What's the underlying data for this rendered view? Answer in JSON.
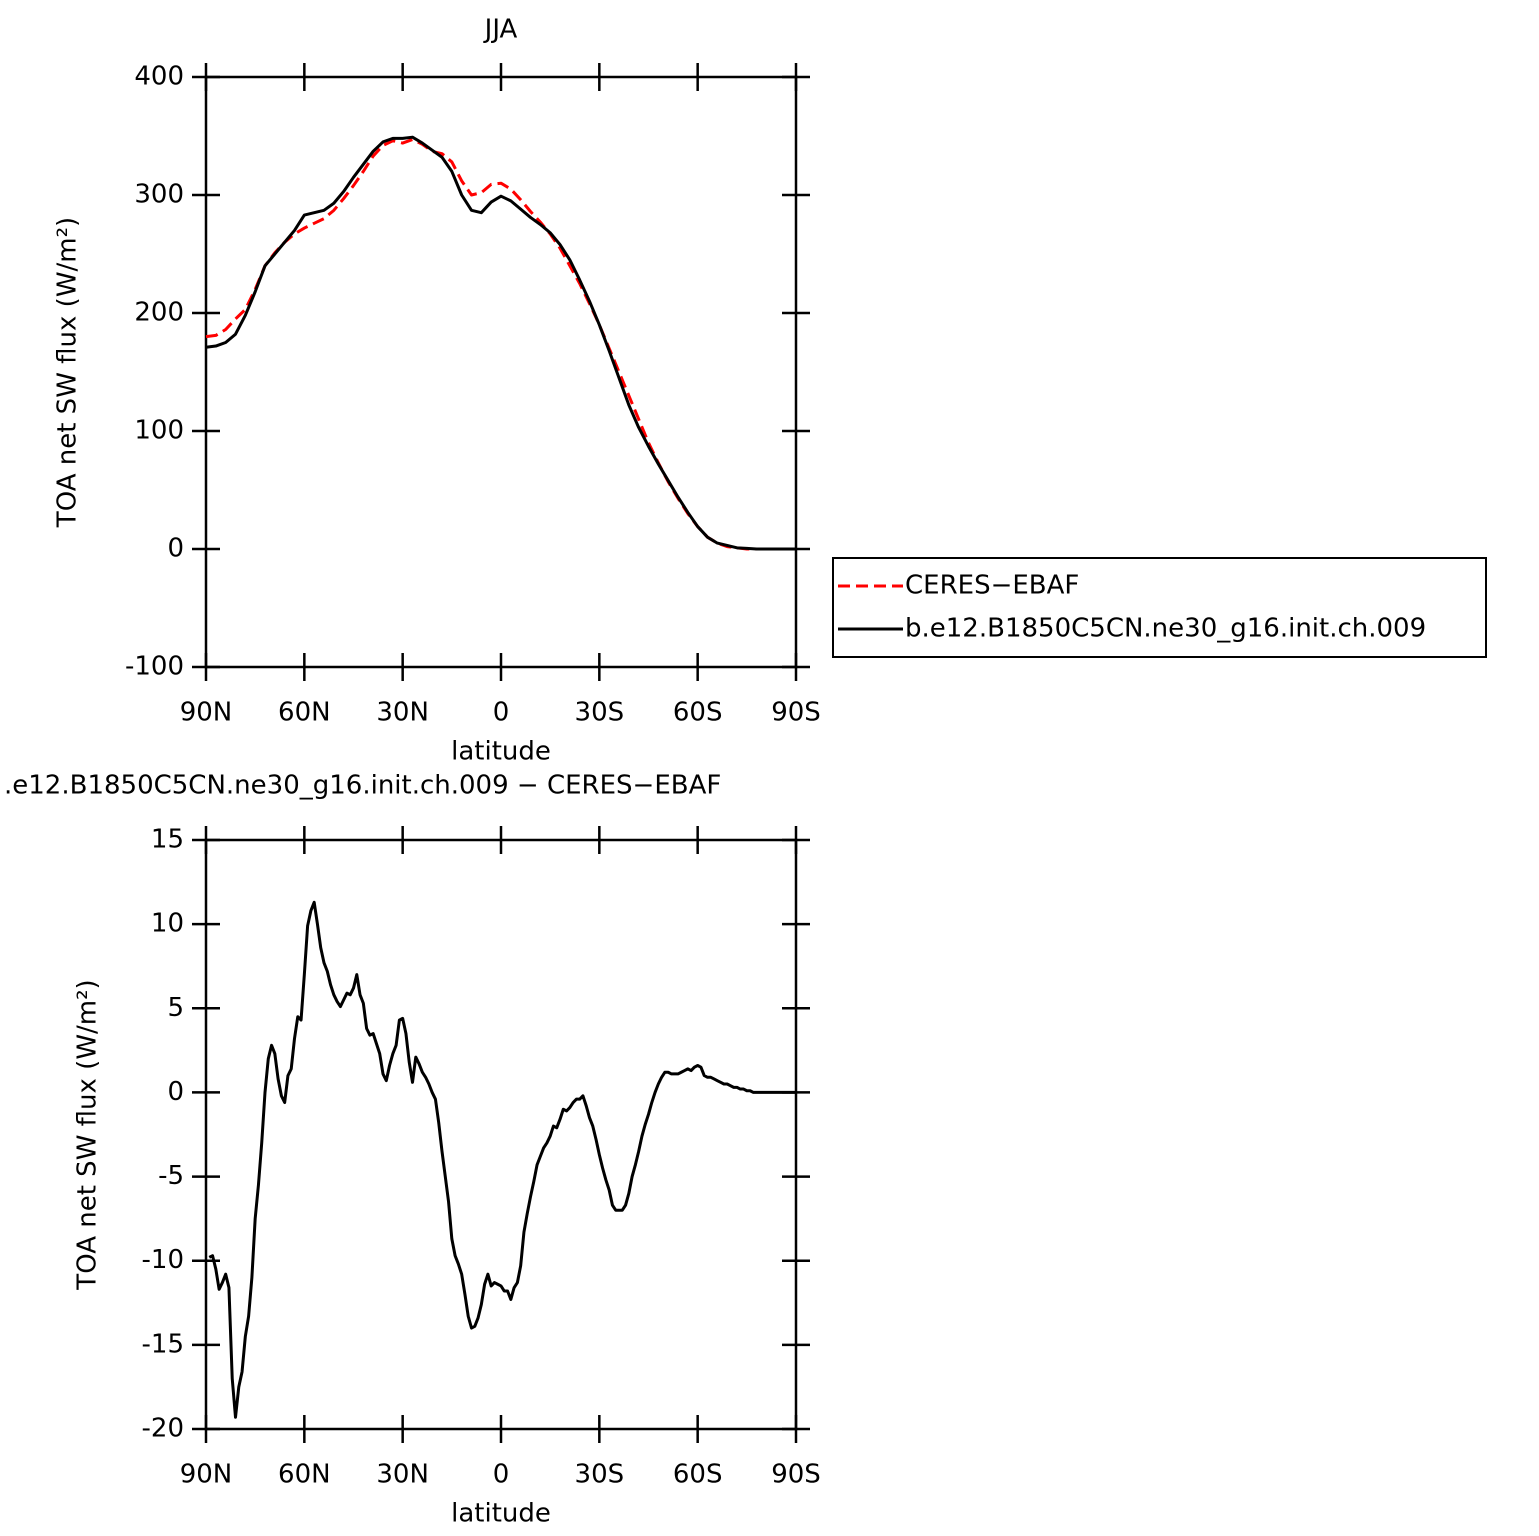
{
  "chart_data": [
    {
      "type": "line",
      "title": "JJA",
      "xlabel": "latitude",
      "ylabel": "TOA net SW flux (W/m²)",
      "xlim": [
        90,
        -90
      ],
      "ylim": [
        -100,
        400
      ],
      "yticks": [
        -100,
        0,
        100,
        200,
        300,
        400
      ],
      "xticks": [
        {
          "value": 90,
          "label": "90N"
        },
        {
          "value": 60,
          "label": "60N"
        },
        {
          "value": 30,
          "label": "30N"
        },
        {
          "value": 0,
          "label": "0"
        },
        {
          "value": -30,
          "label": "30S"
        },
        {
          "value": -60,
          "label": "60S"
        },
        {
          "value": -90,
          "label": "90S"
        }
      ],
      "legend": "right",
      "x": [
        90,
        87,
        84,
        81,
        78,
        75,
        72,
        69,
        66,
        63,
        60,
        57,
        54,
        51,
        48,
        45,
        42,
        39,
        36,
        33,
        30,
        27,
        24,
        21,
        18,
        15,
        12,
        9,
        6,
        3,
        0,
        -3,
        -6,
        -9,
        -12,
        -15,
        -18,
        -21,
        -24,
        -27,
        -30,
        -33,
        -36,
        -39,
        -42,
        -45,
        -48,
        -51,
        -54,
        -57,
        -60,
        -63,
        -66,
        -69,
        -72,
        -75,
        -78,
        -81,
        -84,
        -87,
        -90
      ],
      "series": [
        {
          "name": "CERES−EBAF",
          "color": "#ff0000",
          "dashed": true,
          "values": [
            180,
            181,
            186,
            195,
            203,
            220,
            240,
            251,
            260,
            267,
            272,
            276,
            280,
            287,
            297,
            308,
            320,
            333,
            342,
            346,
            344,
            347,
            343,
            337,
            335,
            328,
            312,
            300,
            302,
            309,
            310,
            305,
            296,
            286,
            277,
            267,
            255,
            240,
            225,
            208,
            190,
            170,
            150,
            130,
            110,
            90,
            73,
            57,
            43,
            30,
            19,
            10,
            5,
            2,
            1,
            0,
            0,
            0,
            0,
            0,
            0
          ]
        },
        {
          "name": "b.e12.B1850C5CN.ne30_g16.init.ch.009",
          "color": "#000000",
          "dashed": false,
          "values": [
            171,
            172,
            175,
            182,
            198,
            218,
            240,
            250,
            260,
            270,
            283,
            285,
            287,
            293,
            303,
            315,
            326,
            337,
            345,
            348,
            348,
            349,
            344,
            338,
            332,
            320,
            300,
            287,
            285,
            294,
            299,
            295,
            288,
            281,
            275,
            268,
            258,
            245,
            228,
            210,
            190,
            168,
            145,
            122,
            103,
            87,
            72,
            58,
            44,
            31,
            19,
            10,
            5,
            3,
            1,
            0.5,
            0,
            0,
            0,
            0,
            0
          ]
        }
      ]
    },
    {
      "type": "line",
      "title": ".e12.B1850C5CN.ne30_g16.init.ch.009 − CERES−EBAF",
      "xlabel": "latitude",
      "ylabel": "TOA net SW flux (W/m²)",
      "xlim": [
        90,
        -90
      ],
      "ylim": [
        -20,
        15
      ],
      "yticks": [
        -20,
        -15,
        -10,
        -5,
        0,
        5,
        10,
        15
      ],
      "xticks": [
        {
          "value": 90,
          "label": "90N"
        },
        {
          "value": 60,
          "label": "60N"
        },
        {
          "value": 30,
          "label": "30N"
        },
        {
          "value": 0,
          "label": "0"
        },
        {
          "value": -30,
          "label": "30S"
        },
        {
          "value": -60,
          "label": "60S"
        },
        {
          "value": -90,
          "label": "90S"
        }
      ],
      "color": "#000000",
      "x": [
        89,
        88,
        87,
        86,
        85,
        84,
        83,
        82,
        81,
        80,
        79,
        78,
        77,
        76,
        75,
        74,
        73,
        72,
        71,
        70,
        69,
        68,
        67,
        66,
        65,
        64,
        63,
        62,
        61,
        60,
        59,
        58,
        57,
        56,
        55,
        54,
        53,
        52,
        51,
        50,
        49,
        48,
        47,
        46,
        45,
        44,
        43,
        42,
        41,
        40,
        39,
        38,
        37,
        36,
        35,
        34,
        33,
        32,
        31,
        30,
        29,
        28,
        27,
        26,
        25,
        24,
        23,
        22,
        21,
        20,
        19,
        18,
        17,
        16,
        15,
        14,
        13,
        12,
        11,
        10,
        9,
        8,
        7,
        6,
        5,
        4,
        3,
        2,
        1,
        0,
        -1,
        -2,
        -3,
        -4,
        -5,
        -6,
        -7,
        -8,
        -9,
        -10,
        -11,
        -12,
        -13,
        -14,
        -15,
        -16,
        -17,
        -18,
        -19,
        -20,
        -21,
        -22,
        -23,
        -24,
        -25,
        -26,
        -27,
        -28,
        -29,
        -30,
        -31,
        -32,
        -33,
        -34,
        -35,
        -36,
        -37,
        -38,
        -39,
        -40,
        -41,
        -42,
        -43,
        -44,
        -45,
        -46,
        -47,
        -48,
        -49,
        -50,
        -51,
        -52,
        -53,
        -54,
        -55,
        -56,
        -57,
        -58,
        -59,
        -60,
        -61,
        -62,
        -63,
        -64,
        -65,
        -66,
        -67,
        -68,
        -69,
        -70,
        -71,
        -72,
        -73,
        -74,
        -75,
        -76,
        -77,
        -78,
        -79,
        -80,
        -81,
        -82,
        -83,
        -84,
        -85,
        -86,
        -87,
        -88,
        -89,
        -90
      ],
      "values": [
        -9.8,
        -9.7,
        -10.5,
        -11.7,
        -11.3,
        -10.8,
        -11.6,
        -17,
        -19.3,
        -17.5,
        -16.6,
        -14.5,
        -13.3,
        -11,
        -7.5,
        -5.5,
        -3,
        0,
        2,
        2.8,
        2.3,
        0.8,
        -0.2,
        -0.6,
        1,
        1.4,
        3.2,
        4.5,
        4.3,
        7,
        9.9,
        10.8,
        11.3,
        10,
        8.6,
        7.7,
        7.2,
        6.4,
        5.8,
        5.4,
        5.1,
        5.5,
        5.9,
        5.8,
        6.2,
        7,
        5.8,
        5.3,
        3.8,
        3.4,
        3.5,
        2.9,
        2.3,
        1.1,
        0.7,
        1.6,
        2.3,
        2.8,
        4.3,
        4.4,
        3.5,
        1.8,
        0.6,
        2.1,
        1.7,
        1.2,
        0.9,
        0.5,
        0,
        -0.4,
        -1.8,
        -3.5,
        -5,
        -6.5,
        -8.7,
        -9.7,
        -10.2,
        -10.8,
        -12,
        -13.3,
        -14,
        -13.9,
        -13.4,
        -12.6,
        -11.4,
        -10.8,
        -11.5,
        -11.3,
        -11.4,
        -11.5,
        -11.8,
        -11.8,
        -12.3,
        -11.6,
        -11.3,
        -10.3,
        -8.3,
        -7.2,
        -6.2,
        -5.3,
        -4.3,
        -3.8,
        -3.3,
        -3,
        -2.6,
        -2,
        -2.1,
        -1.6,
        -1,
        -1.1,
        -0.9,
        -0.6,
        -0.4,
        -0.4,
        -0.2,
        -0.8,
        -1.5,
        -2,
        -2.8,
        -3.7,
        -4.5,
        -5.2,
        -5.8,
        -6.7,
        -7,
        -7,
        -7,
        -6.7,
        -6,
        -5,
        -4.3,
        -3.5,
        -2.6,
        -1.9,
        -1.3,
        -0.6,
        0,
        0.5,
        0.9,
        1.2,
        1.2,
        1.1,
        1.1,
        1.1,
        1.2,
        1.3,
        1.4,
        1.3,
        1.5,
        1.6,
        1.5,
        1,
        0.9,
        0.9,
        0.8,
        0.7,
        0.6,
        0.5,
        0.5,
        0.4,
        0.3,
        0.3,
        0.2,
        0.2,
        0.1,
        0.1,
        0,
        0,
        0,
        0,
        0,
        0,
        0,
        0,
        0,
        0,
        0,
        0,
        0,
        0
      ]
    }
  ]
}
